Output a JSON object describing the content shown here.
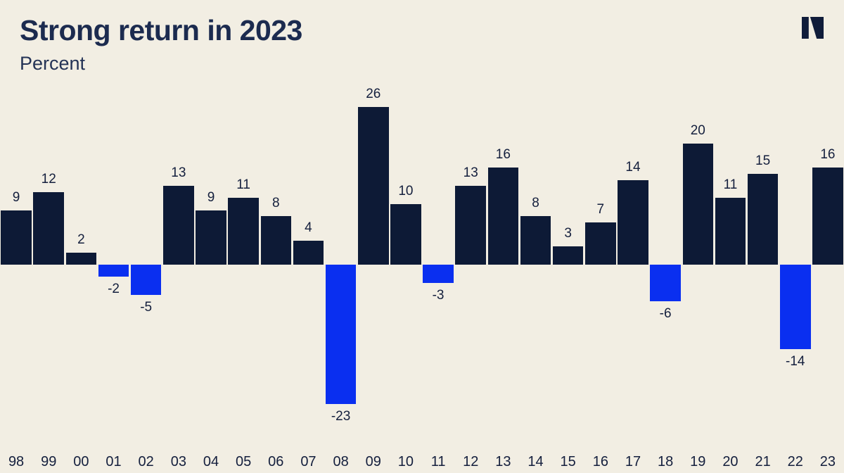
{
  "header": {
    "title": "Strong return in 2023",
    "subtitle": "Percent"
  },
  "logo": {
    "icon": "n-logo",
    "color": "#101c3a"
  },
  "colors": {
    "background": "#f2eee3",
    "positive_bar": "#0d1a36",
    "negative_bar": "#0a2ff0",
    "title_text": "#1c2b4f",
    "label_text": "#141f3d"
  },
  "chart_data": {
    "type": "bar",
    "title": "Strong return in 2023",
    "subtitle": "Percent",
    "xlabel": "",
    "ylabel": "Percent",
    "categories": [
      "98",
      "99",
      "00",
      "01",
      "02",
      "03",
      "04",
      "05",
      "06",
      "07",
      "08",
      "09",
      "10",
      "11",
      "12",
      "13",
      "14",
      "15",
      "16",
      "17",
      "18",
      "19",
      "20",
      "21",
      "22",
      "23"
    ],
    "values": [
      9,
      12,
      2,
      -2,
      -5,
      13,
      9,
      11,
      8,
      4,
      -23,
      26,
      10,
      -3,
      13,
      16,
      8,
      3,
      7,
      14,
      -6,
      20,
      11,
      15,
      -14,
      16
    ],
    "ylim": [
      -23,
      26
    ],
    "grid": false,
    "legend": false,
    "axis_line": false,
    "bar_labels": "all",
    "positive_color": "#0d1a36",
    "negative_color": "#0a2ff0"
  }
}
